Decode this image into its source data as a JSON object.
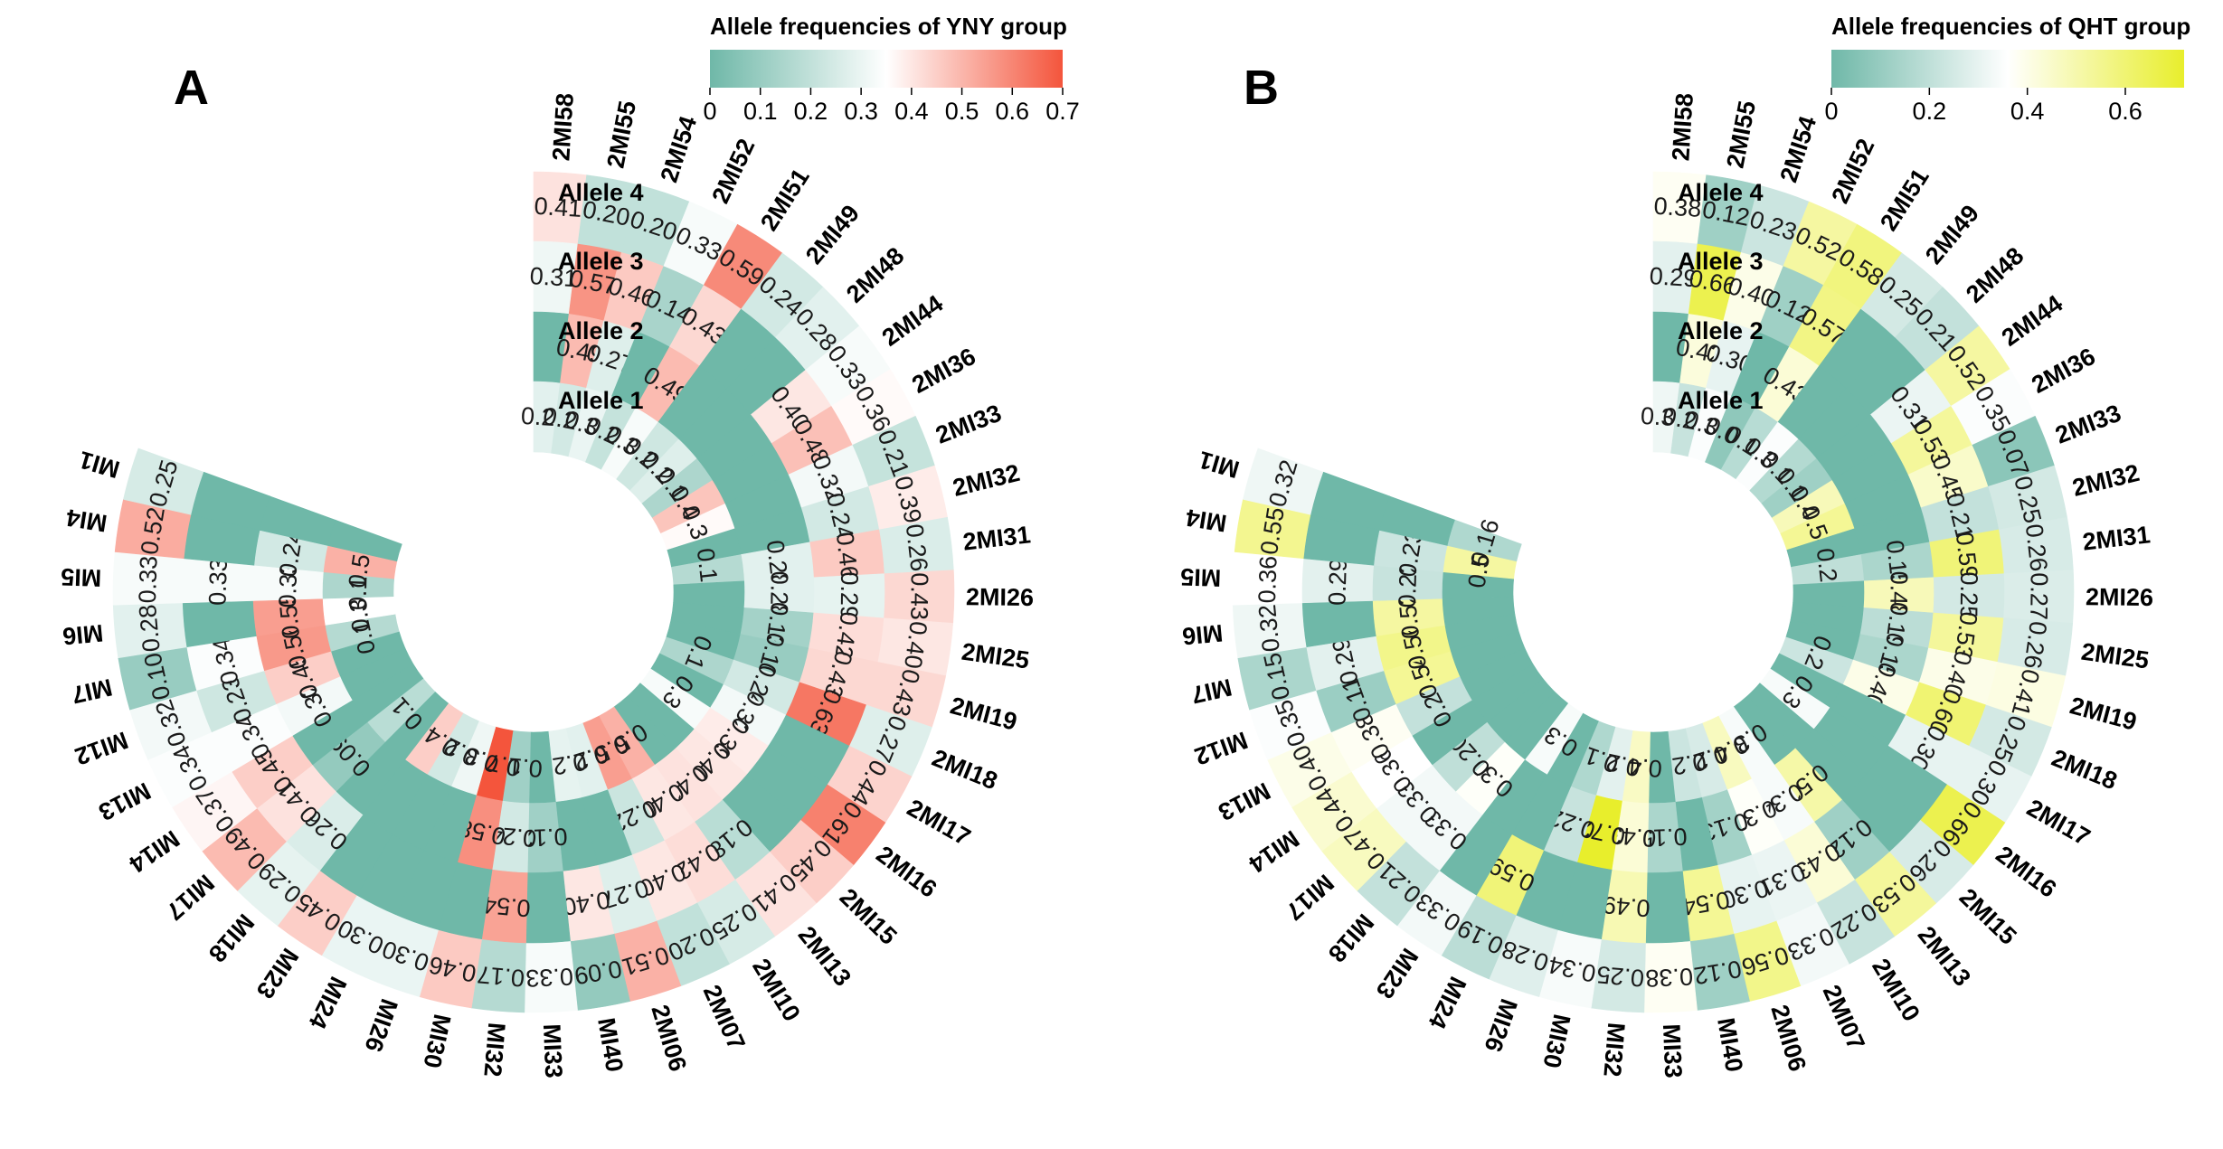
{
  "chart_data": [
    {
      "type": "heatmap",
      "panel_label": "A",
      "legend_title": "Allele frequencies of YNY group",
      "legend_ticks": [
        "0",
        "0.1",
        "0.2",
        "0.3",
        "0.4",
        "0.5",
        "0.6",
        "0.7"
      ],
      "color_scale": {
        "min": 0,
        "max": 0.7,
        "mid": 0.35,
        "low": "#6fb8a8",
        "mid_color": "#ffffff",
        "high": "#f4553c"
      },
      "ring_labels": [
        "Allele 4",
        "Allele 3",
        "Allele 2",
        "Allele 1"
      ],
      "markers": [
        "2MI58",
        "2MI55",
        "2MI54",
        "2MI52",
        "2MI51",
        "2MI49",
        "2MI48",
        "2MI44",
        "2MI36",
        "2MI33",
        "2MI32",
        "2MI31",
        "2MI26",
        "2MI25",
        "2MI19",
        "2MI18",
        "2MI17",
        "2MI16",
        "2MI15",
        "2MI13",
        "2MI10",
        "2MI07",
        "2MI06",
        "MI40",
        "MI33",
        "MI32",
        "MI30",
        "MI26",
        "MI24",
        "MI23",
        "MI18",
        "MI17",
        "MI14",
        "MI13",
        "MI12",
        "MI7",
        "MI6",
        "MI5",
        "MI4",
        "MI1"
      ],
      "values": {
        "allele4": [
          0.41,
          0.2,
          0.2,
          0.33,
          0.59,
          0.24,
          0.28,
          0.33,
          0.36,
          0.21,
          0.39,
          0.26,
          0.43,
          0.4,
          0.43,
          0.27,
          0.44,
          0.61,
          0.45,
          0.41,
          0.25,
          0.2,
          0.51,
          0.09,
          0.33,
          0.17,
          0.46,
          0.3,
          0.3,
          0.45,
          0.29,
          0.49,
          0.37,
          0.34,
          0.32,
          0.1,
          0.28,
          0.33,
          0.52,
          0.25
        ],
        "allele3": [
          0.31,
          0.57,
          0.46,
          0.14,
          0.43,
          null,
          null,
          0.4,
          0.48,
          0.32,
          0.24,
          0.46,
          0.29,
          0.42,
          0.43,
          0.63,
          null,
          null,
          null,
          0.18,
          0.42,
          0.4,
          0.27,
          0.4,
          null,
          0.54,
          null,
          null,
          null,
          null,
          0.26,
          0.41,
          0.45,
          0.34,
          0.23,
          0.34,
          null,
          0.33,
          null,
          null
        ],
        "allele2": [
          null,
          0.49,
          0.27,
          null,
          0.49,
          null,
          null,
          null,
          null,
          null,
          null,
          0.28,
          0.28,
          0.13,
          0.1,
          0.24,
          0.32,
          0.39,
          0.4,
          0.41,
          0.4,
          0.22,
          null,
          null,
          0.12,
          0.24,
          0.58,
          null,
          null,
          null,
          null,
          0.09,
          null,
          0.32,
          0.45,
          0.56,
          0.55,
          0.33,
          0.24,
          null
        ],
        "allele1": [
          0.28,
          0.24,
          0.3,
          0.21,
          0.33,
          0.23,
          0.27,
          0.15,
          0.47,
          0.36,
          null,
          0.17,
          null,
          null,
          null,
          0.15,
          null,
          0.33,
          null,
          null,
          0.51,
          0.55,
          0.28,
          0.29,
          null,
          0.12,
          0.7,
          0.31,
          0.24,
          0.45,
          null,
          0.18,
          null,
          null,
          null,
          0.17,
          0.35,
          0.15,
          0.51,
          null
        ]
      }
    },
    {
      "type": "heatmap",
      "panel_label": "B",
      "legend_title": "Allele frequencies of QHT group",
      "legend_ticks": [
        "0",
        "0.2",
        "0.4",
        "0.6"
      ],
      "color_scale": {
        "min": 0,
        "max": 0.72,
        "mid": 0.36,
        "low": "#6fb8a8",
        "mid_color": "#ffffff",
        "high": "#e8ee2c"
      },
      "ring_labels": [
        "Allele 4",
        "Allele 3",
        "Allele 2",
        "Allele 1"
      ],
      "markers": [
        "2MI58",
        "2MI55",
        "2MI54",
        "2MI52",
        "2MI51",
        "2MI49",
        "2MI48",
        "2MI44",
        "2MI36",
        "2MI33",
        "2MI32",
        "2MI31",
        "2MI26",
        "2MI25",
        "2MI19",
        "2MI18",
        "2MI17",
        "2MI16",
        "2MI15",
        "2MI13",
        "2MI10",
        "2MI07",
        "2MI06",
        "MI40",
        "MI33",
        "MI32",
        "MI30",
        "MI26",
        "MI24",
        "MI23",
        "MI18",
        "MI17",
        "MI14",
        "MI13",
        "MI12",
        "MI7",
        "MI6",
        "MI5",
        "MI4",
        "MI1"
      ],
      "values": {
        "allele4": [
          0.38,
          0.12,
          0.23,
          0.52,
          0.58,
          0.25,
          0.21,
          0.52,
          0.35,
          0.07,
          0.25,
          0.26,
          0.27,
          0.26,
          0.41,
          0.25,
          0.3,
          0.66,
          0.26,
          0.53,
          0.22,
          0.33,
          0.56,
          0.12,
          0.38,
          0.25,
          0.34,
          0.28,
          0.19,
          0.33,
          0.21,
          0.47,
          0.44,
          0.4,
          0.35,
          0.15,
          0.32,
          0.36,
          0.55,
          0.32
        ],
        "allele3": [
          0.29,
          0.66,
          0.4,
          0.12,
          0.57,
          null,
          null,
          0.31,
          0.53,
          0.45,
          0.21,
          0.59,
          0.25,
          0.53,
          0.4,
          0.6,
          0.3,
          null,
          null,
          0.12,
          0.43,
          0.31,
          0.3,
          0.54,
          null,
          0.49,
          null,
          null,
          0.59,
          null,
          0.33,
          0.33,
          0.36,
          0.38,
          0.11,
          0.29,
          null,
          0.29,
          null,
          null
        ],
        "allele2": [
          null,
          0.42,
          0.3,
          null,
          0.43,
          null,
          null,
          null,
          null,
          null,
          null,
          0.15,
          0.48,
          0.19,
          0.15,
          0.4,
          null,
          null,
          null,
          0.51,
          0.34,
          0.37,
          0.13,
          null,
          0.15,
          0.43,
          0.72,
          0.22,
          null,
          null,
          0.37,
          0.2,
          null,
          0.21,
          0.54,
          0.56,
          0.52,
          0.22,
          0.23,
          null
        ],
        "allele1": [
          0.32,
          0.22,
          0.35,
          0.08,
          0.18,
          0.35,
          0.17,
          0.12,
          0.48,
          0.54,
          null,
          0.2,
          null,
          null,
          null,
          0.23,
          null,
          0.34,
          null,
          null,
          0.34,
          0.47,
          0.26,
          0.23,
          null,
          0.46,
          0.29,
          0.16,
          null,
          0.34,
          null,
          null,
          null,
          null,
          null,
          null,
          null,
          null,
          0.52,
          0.16
        ]
      }
    }
  ]
}
